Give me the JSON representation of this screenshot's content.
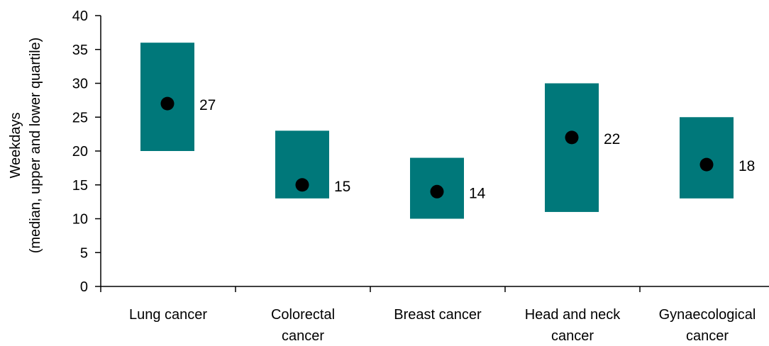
{
  "chart_data": {
    "type": "box",
    "title": "",
    "xlabel": "",
    "ylabel": [
      "Weekdays",
      "(median, upper and lower quartile)"
    ],
    "ylim": [
      0,
      40
    ],
    "yticks": [
      0,
      5,
      10,
      15,
      20,
      25,
      30,
      35,
      40
    ],
    "categories": [
      [
        "Lung cancer"
      ],
      [
        "Colorectal",
        "cancer"
      ],
      [
        "Breast cancer"
      ],
      [
        "Head and neck",
        "cancer"
      ],
      [
        "Gynaecological",
        "cancer"
      ]
    ],
    "series": [
      {
        "lower_quartile": [
          20,
          13,
          10,
          11,
          13
        ],
        "median": [
          27,
          15,
          14,
          22,
          18
        ],
        "upper_quartile": [
          36,
          23,
          19,
          30,
          25
        ],
        "labels": [
          "27",
          "15",
          "14",
          "22",
          "18"
        ]
      }
    ],
    "grid": false,
    "colors": {
      "box": "#00787A",
      "median_marker": "#000000"
    }
  }
}
